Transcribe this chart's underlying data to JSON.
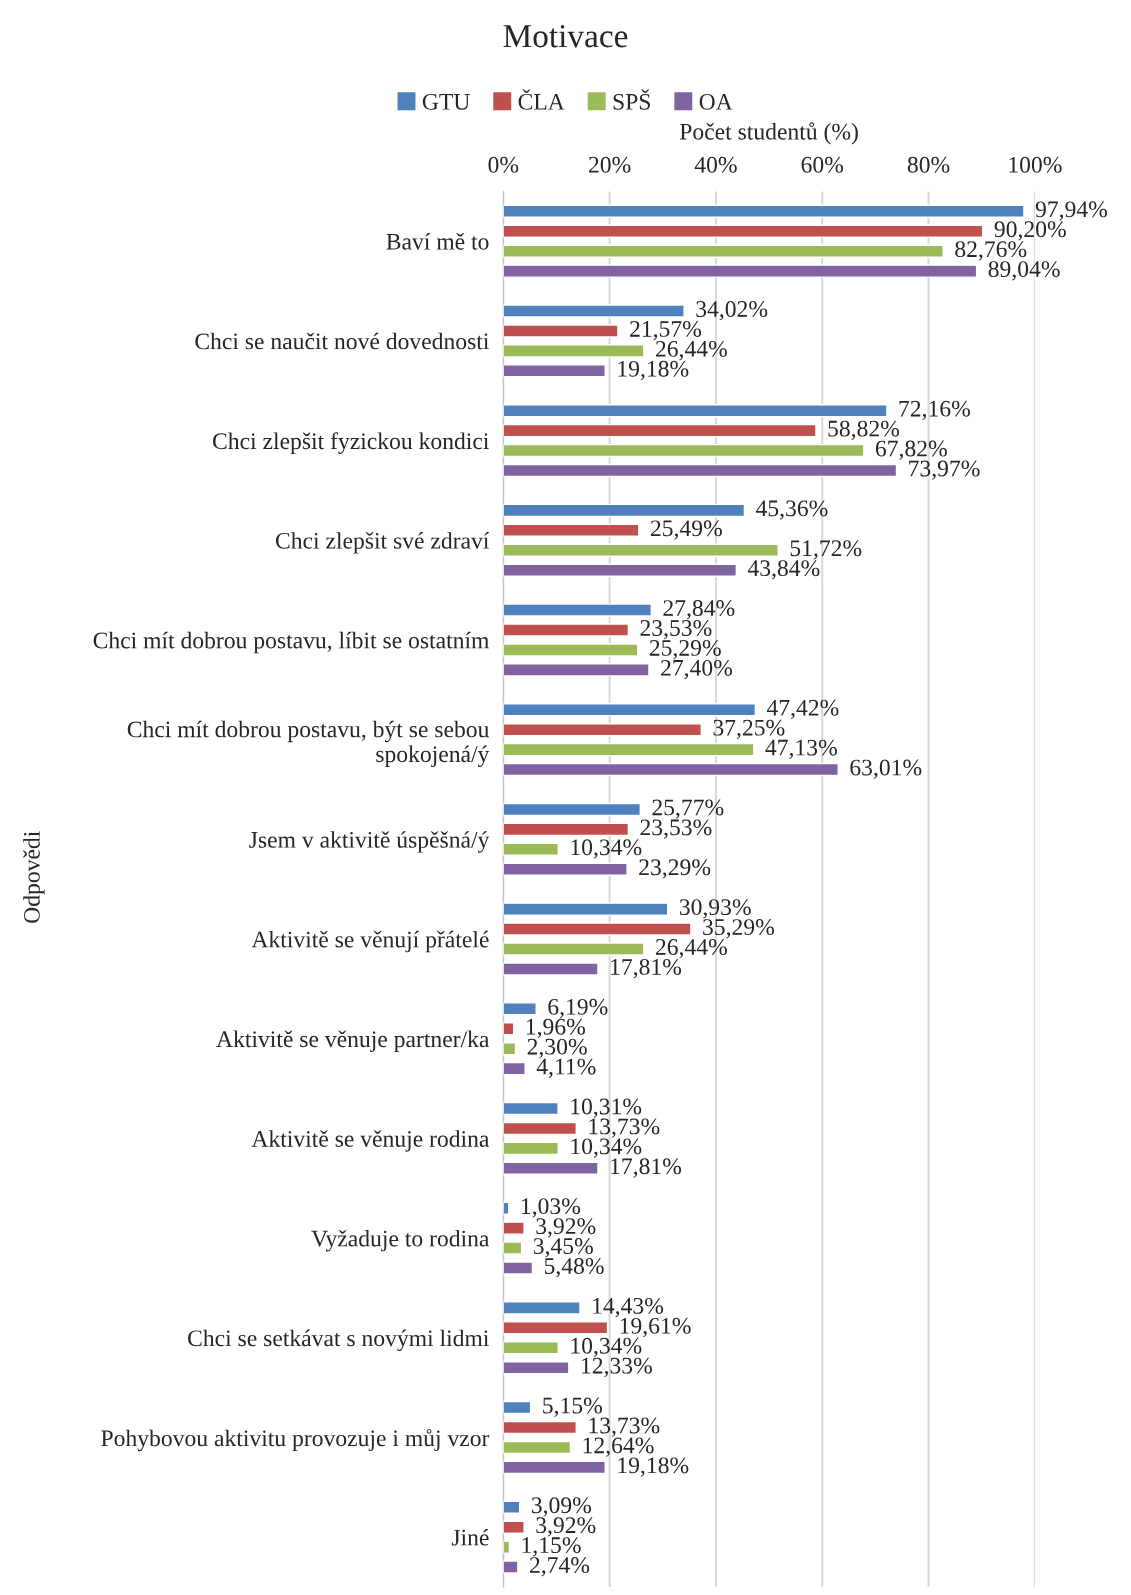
{
  "chart_data": {
    "type": "bar",
    "orientation": "horizontal",
    "title": "Motivace",
    "xlabel": "Počet studentů (%)",
    "ylabel": "Odpovědi",
    "categories": [
      "Baví mě to",
      "Chci se naučit nové dovednosti",
      "Chci zlepšit fyzickou kondici",
      "Chci zlepšit své zdraví",
      "Chci mít dobrou postavu, líbit se ostatním",
      "Chci mít dobrou postavu, být se sebou\nspokojená/ý",
      "Jsem v aktivitě úspěšná/ý",
      "Aktivitě se věnují přátelé",
      "Aktivitě se věnuje partner/ka",
      "Aktivitě se věnuje rodina",
      "Vyžaduje to rodina",
      "Chci se setkávat s novými lidmi",
      "Pohybovou aktivitu provozuje i můj vzor",
      "Jiné"
    ],
    "series": [
      {
        "name": "GTU",
        "color": "#4f81bd",
        "values": [
          97.94,
          34.02,
          72.16,
          45.36,
          27.84,
          47.42,
          25.77,
          30.93,
          6.19,
          10.31,
          1.03,
          14.43,
          5.15,
          3.09
        ],
        "value_labels": [
          "97,94%",
          "34,02%",
          "72,16%",
          "45,36%",
          "27,84%",
          "47,42%",
          "25,77%",
          "30,93%",
          "6,19%",
          "10,31%",
          "1,03%",
          "14,43%",
          "5,15%",
          "3,09%"
        ]
      },
      {
        "name": "ČLA",
        "color": "#c0504d",
        "values": [
          90.2,
          21.57,
          58.82,
          25.49,
          23.53,
          37.25,
          23.53,
          35.29,
          1.96,
          13.73,
          3.92,
          19.61,
          13.73,
          3.92
        ],
        "value_labels": [
          "90,20%",
          "21,57%",
          "58,82%",
          "25,49%",
          "23,53%",
          "37,25%",
          "23,53%",
          "35,29%",
          "1,96%",
          "13,73%",
          "3,92%",
          "19,61%",
          "13,73%",
          "3,92%"
        ]
      },
      {
        "name": "SPŠ",
        "color": "#9bbb59",
        "values": [
          82.76,
          26.44,
          67.82,
          51.72,
          25.29,
          47.13,
          10.34,
          26.44,
          2.3,
          10.34,
          3.45,
          10.34,
          12.64,
          1.15
        ],
        "value_labels": [
          "82,76%",
          "26,44%",
          "67,82%",
          "51,72%",
          "25,29%",
          "47,13%",
          "10,34%",
          "26,44%",
          "2,30%",
          "10,34%",
          "3,45%",
          "10,34%",
          "12,64%",
          "1,15%"
        ]
      },
      {
        "name": "OA",
        "color": "#8064a2",
        "values": [
          89.04,
          19.18,
          73.97,
          43.84,
          27.4,
          63.01,
          23.29,
          17.81,
          4.11,
          17.81,
          5.48,
          12.33,
          19.18,
          2.74
        ],
        "value_labels": [
          "89,04%",
          "19,18%",
          "73,97%",
          "43,84%",
          "27,40%",
          "63,01%",
          "23,29%",
          "17,81%",
          "4,11%",
          "17,81%",
          "5,48%",
          "12,33%",
          "19,18%",
          "2,74%"
        ]
      }
    ],
    "xlim": [
      0,
      100
    ],
    "xticks": [
      {
        "value": 0,
        "label": "0%"
      },
      {
        "value": 20,
        "label": "20%"
      },
      {
        "value": 40,
        "label": "40%"
      },
      {
        "value": 60,
        "label": "60%"
      },
      {
        "value": 80,
        "label": "80%"
      },
      {
        "value": 100,
        "label": "100%"
      }
    ],
    "grid": "x",
    "legend": "top"
  }
}
